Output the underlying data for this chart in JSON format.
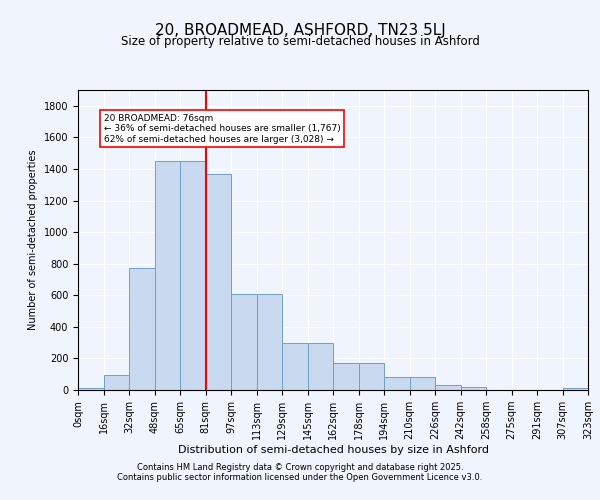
{
  "title": "20, BROADMEAD, ASHFORD, TN23 5LJ",
  "subtitle": "Size of property relative to semi-detached houses in Ashford",
  "xlabel": "Distribution of semi-detached houses by size in Ashford",
  "ylabel": "Number of semi-detached properties",
  "footer_line1": "Contains HM Land Registry data © Crown copyright and database right 2025.",
  "footer_line2": "Contains public sector information licensed under the Open Government Licence v3.0.",
  "annotation_title": "20 BROADMEAD: 76sqm",
  "annotation_line2": "← 36% of semi-detached houses are smaller (1,767)",
  "annotation_line3": "62% of semi-detached houses are larger (3,028) →",
  "bin_labels": [
    "0sqm",
    "16sqm",
    "32sqm",
    "48sqm",
    "65sqm",
    "81sqm",
    "97sqm",
    "113sqm",
    "129sqm",
    "145sqm",
    "162sqm",
    "178sqm",
    "194sqm",
    "210sqm",
    "226sqm",
    "242sqm",
    "258sqm",
    "275sqm",
    "291sqm",
    "307sqm",
    "323sqm"
  ],
  "bar_values": [
    10,
    95,
    770,
    1450,
    1450,
    1370,
    610,
    610,
    300,
    295,
    170,
    170,
    80,
    80,
    30,
    20,
    0,
    0,
    0,
    10
  ],
  "bar_color": "#c9d9f0",
  "bar_edge_color": "#6f9fc8",
  "vline_x": 4.5,
  "vline_color": "red",
  "bg_color": "#f0f4fc",
  "ylim": [
    0,
    1900
  ],
  "box_color": "white",
  "box_edge_color": "red"
}
